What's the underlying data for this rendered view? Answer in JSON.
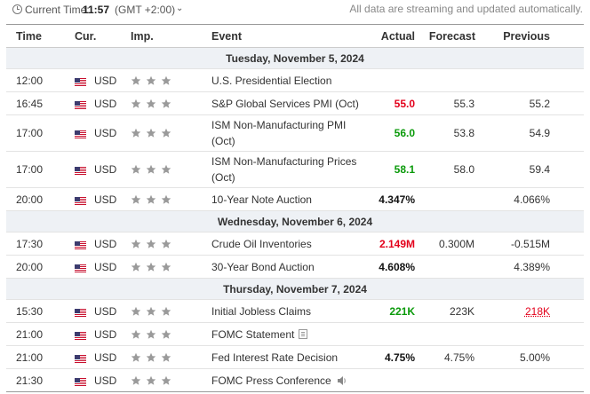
{
  "topbar": {
    "time_label": "Current Time:",
    "time_value": "11:57",
    "timezone": "(GMT +2:00)",
    "streaming_note": "All data are streaming and updated automatically."
  },
  "columns": {
    "time": "Time",
    "currency": "Cur.",
    "importance": "Imp.",
    "event": "Event",
    "actual": "Actual",
    "forecast": "Forecast",
    "previous": "Previous"
  },
  "days": [
    {
      "label": "Tuesday, November 5, 2024",
      "events": [
        {
          "time": "12:00",
          "currency": "USD",
          "flag": "us-flag-icon",
          "importance": 3,
          "event": "U.S. Presidential Election",
          "actual": "",
          "forecast": "",
          "previous": "",
          "actual_color": "",
          "tall": false,
          "extra_icon": ""
        },
        {
          "time": "16:45",
          "currency": "USD",
          "flag": "us-flag-icon",
          "importance": 3,
          "event": "S&P Global Services PMI (Oct)",
          "actual": "55.0",
          "forecast": "55.3",
          "previous": "55.2",
          "actual_color": "#e3001b",
          "tall": false,
          "extra_icon": ""
        },
        {
          "time": "17:00",
          "currency": "USD",
          "flag": "us-flag-icon",
          "importance": 3,
          "event": "ISM Non-Manufacturing PMI (Oct)",
          "actual": "56.0",
          "forecast": "53.8",
          "previous": "54.9",
          "actual_color": "#0a9a0a",
          "tall": true,
          "extra_icon": ""
        },
        {
          "time": "17:00",
          "currency": "USD",
          "flag": "us-flag-icon",
          "importance": 3,
          "event": "ISM Non-Manufacturing Prices (Oct)",
          "actual": "58.1",
          "forecast": "58.0",
          "previous": "59.4",
          "actual_color": "#0a9a0a",
          "tall": true,
          "extra_icon": ""
        },
        {
          "time": "20:00",
          "currency": "USD",
          "flag": "us-flag-icon",
          "importance": 3,
          "event": "10-Year Note Auction",
          "actual": "4.347%",
          "forecast": "",
          "previous": "4.066%",
          "actual_color": "#111111",
          "tall": false,
          "extra_icon": ""
        }
      ]
    },
    {
      "label": "Wednesday, November 6, 2024",
      "events": [
        {
          "time": "17:30",
          "currency": "USD",
          "flag": "us-flag-icon",
          "importance": 3,
          "event": "Crude Oil Inventories",
          "actual": "2.149M",
          "forecast": "0.300M",
          "previous": "-0.515M",
          "actual_color": "#e3001b",
          "tall": false,
          "extra_icon": ""
        },
        {
          "time": "20:00",
          "currency": "USD",
          "flag": "us-flag-icon",
          "importance": 3,
          "event": "30-Year Bond Auction",
          "actual": "4.608%",
          "forecast": "",
          "previous": "4.389%",
          "actual_color": "#111111",
          "tall": false,
          "extra_icon": ""
        }
      ]
    },
    {
      "label": "Thursday, November 7, 2024",
      "events": [
        {
          "time": "15:30",
          "currency": "USD",
          "flag": "us-flag-icon",
          "importance": 3,
          "event": "Initial Jobless Claims",
          "actual": "221K",
          "forecast": "223K",
          "previous": "218K",
          "actual_color": "#0a9a0a",
          "previous_revised": true,
          "tall": false,
          "extra_icon": ""
        },
        {
          "time": "21:00",
          "currency": "USD",
          "flag": "us-flag-icon",
          "importance": 3,
          "event": "FOMC Statement",
          "actual": "",
          "forecast": "",
          "previous": "",
          "actual_color": "",
          "tall": false,
          "extra_icon": "document-icon"
        },
        {
          "time": "21:00",
          "currency": "USD",
          "flag": "us-flag-icon",
          "importance": 3,
          "event": "Fed Interest Rate Decision",
          "actual": "4.75%",
          "forecast": "4.75%",
          "previous": "5.00%",
          "actual_color": "#111111",
          "tall": false,
          "extra_icon": ""
        },
        {
          "time": "21:30",
          "currency": "USD",
          "flag": "us-flag-icon",
          "importance": 3,
          "event": "FOMC Press Conference",
          "actual": "",
          "forecast": "",
          "previous": "",
          "actual_color": "",
          "tall": false,
          "extra_icon": "speaker-icon"
        }
      ]
    }
  ],
  "colors": {
    "actual_better": "#0a9a0a",
    "actual_worse": "#e3001b",
    "star": "#9a9a9a",
    "day_row_bg": "#eef1f5"
  }
}
